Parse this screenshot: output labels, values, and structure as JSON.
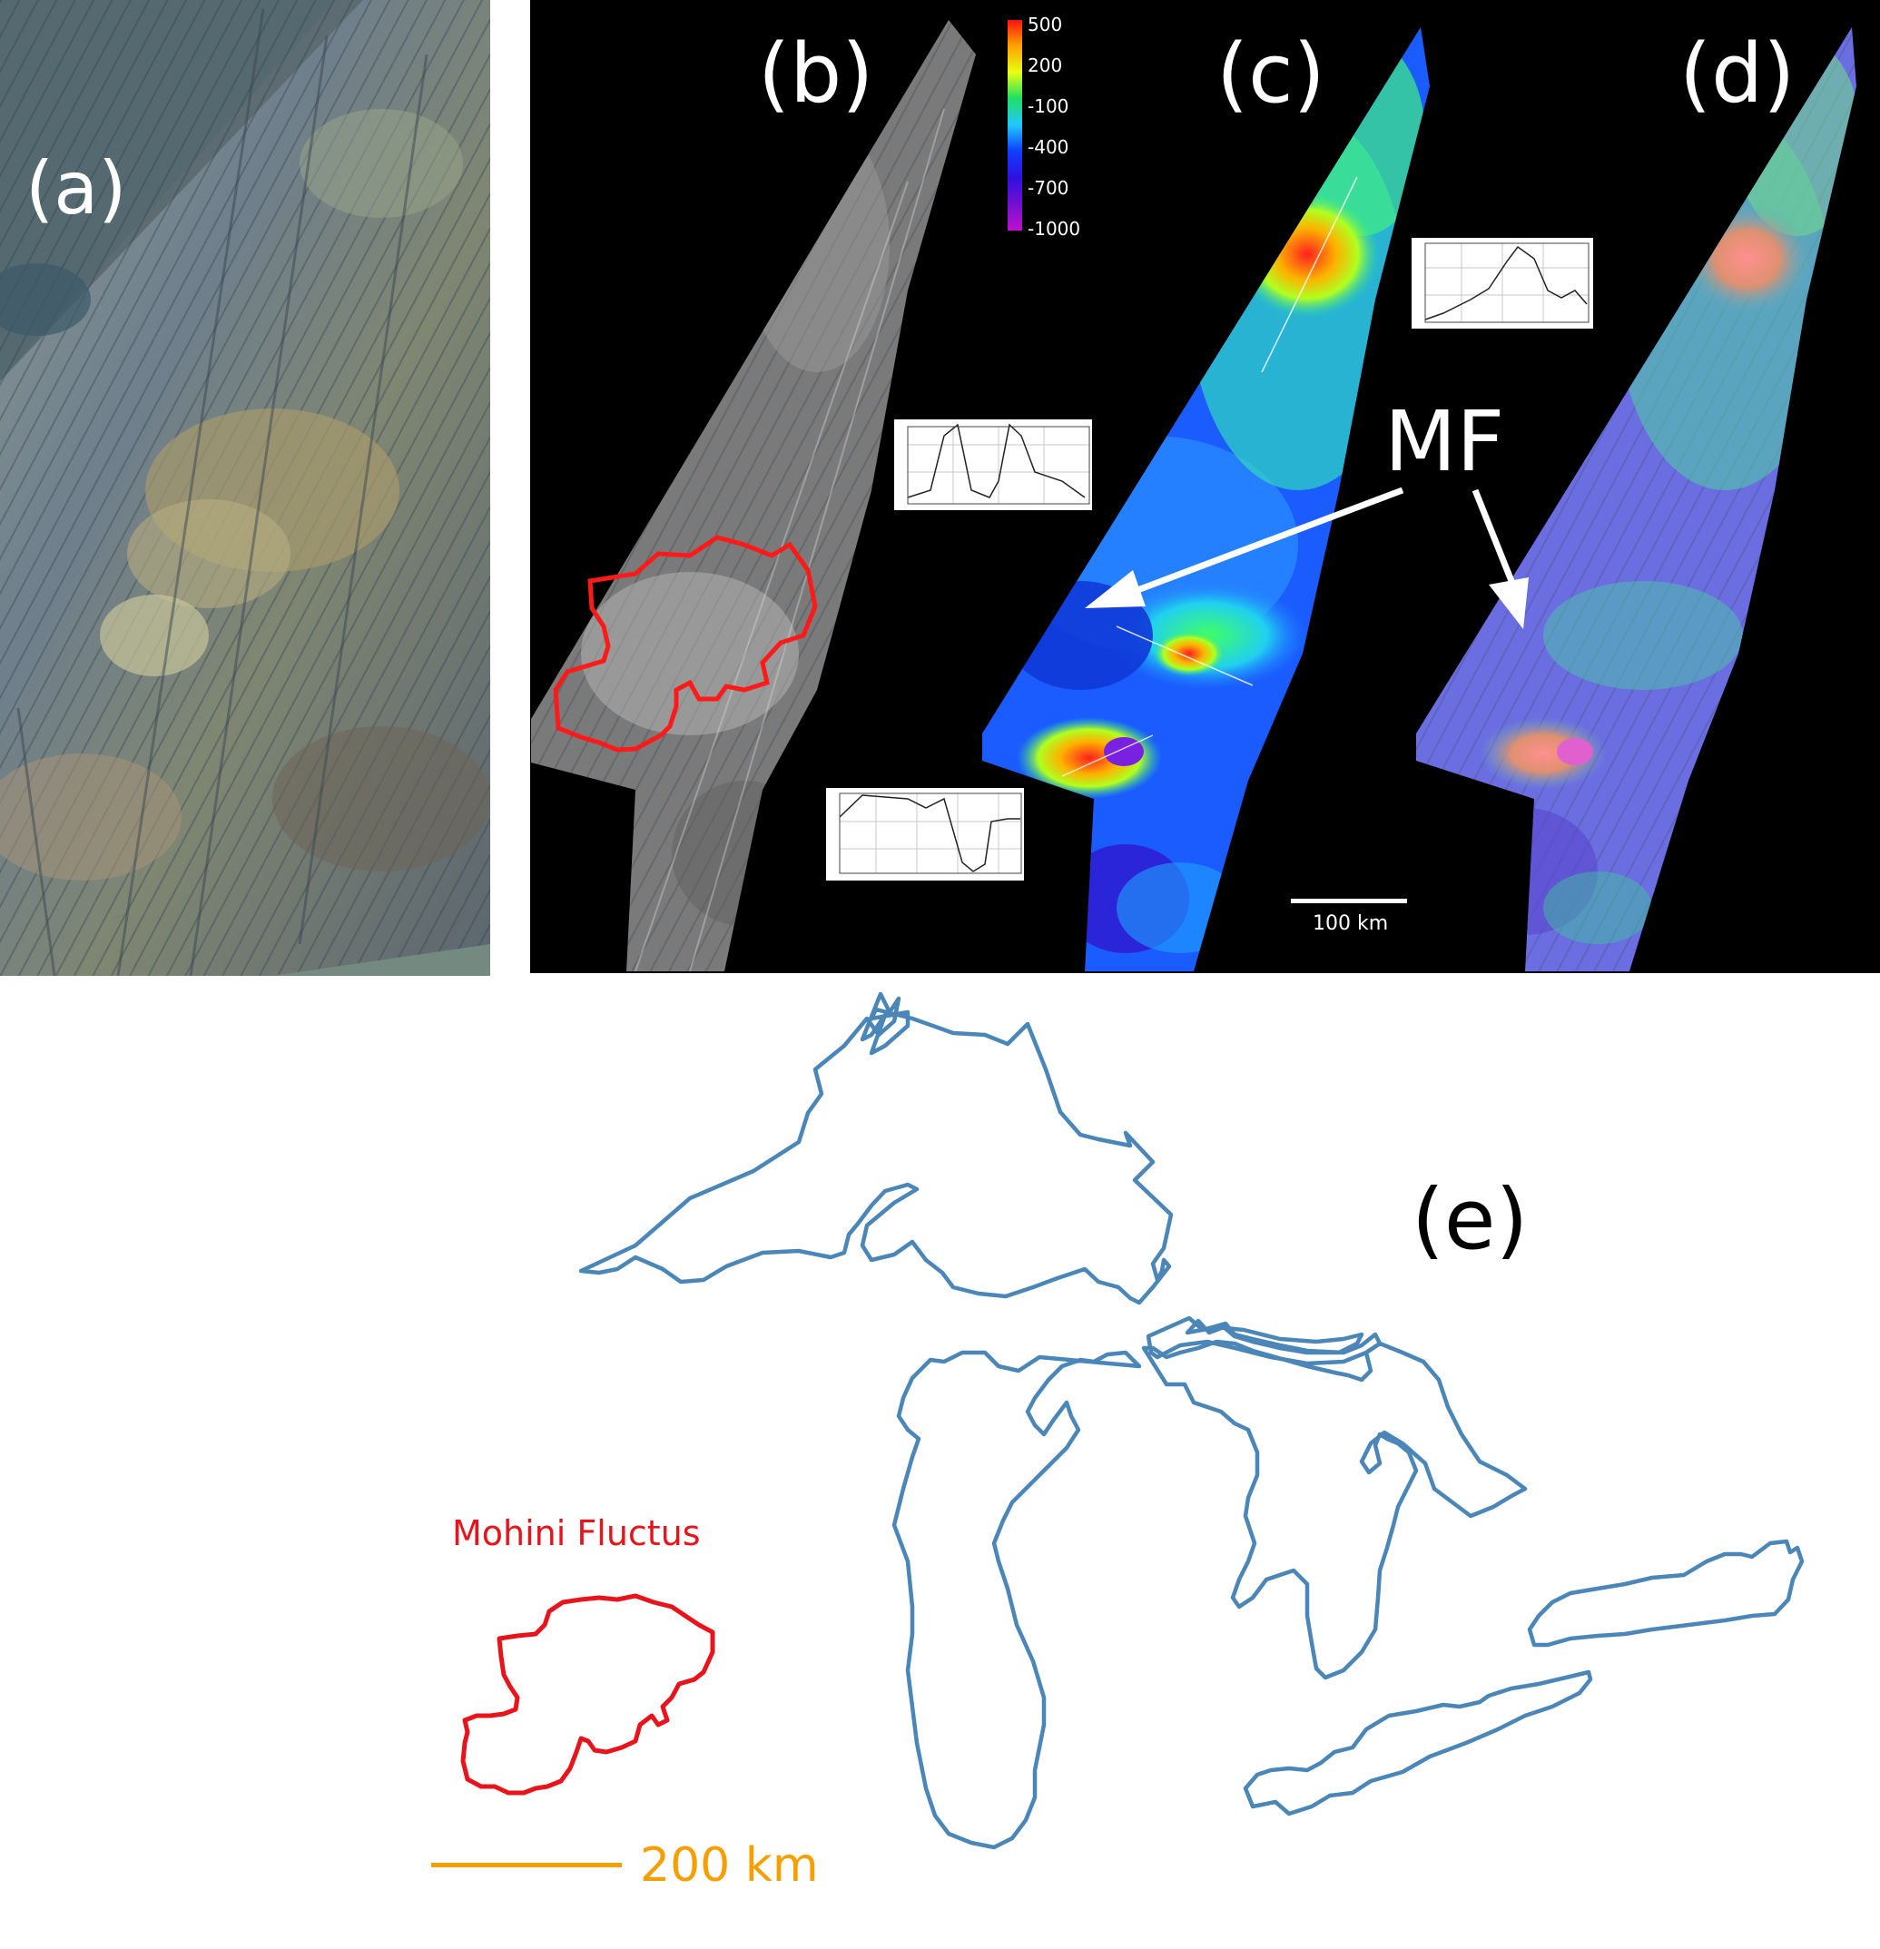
{
  "panels": {
    "a": {
      "label": "(a)"
    },
    "b": {
      "label": "(b)"
    },
    "c": {
      "label": "(c)"
    },
    "d": {
      "label": "(d)"
    },
    "e": {
      "label": "(e)"
    }
  },
  "colorbar": {
    "ticks": [
      "500",
      "200",
      "-100",
      "-400",
      "-700",
      "-1000"
    ],
    "colors": [
      "#ff1010",
      "#ffa000",
      "#e8ff10",
      "#20e060",
      "#20c8ff",
      "#1040ff",
      "#3010e0",
      "#7010d0",
      "#c010d0"
    ]
  },
  "annotation": {
    "mf_label": "MF"
  },
  "scale_bars": {
    "top": {
      "label": "100 km",
      "color": "#ffffff"
    },
    "bottom": {
      "label": "200 km",
      "color": "#f5a000"
    }
  },
  "map_e": {
    "feature_label": "Mohini Fluctus",
    "feature_color": "#e8141c",
    "lakes_color": "#4a86b8"
  }
}
